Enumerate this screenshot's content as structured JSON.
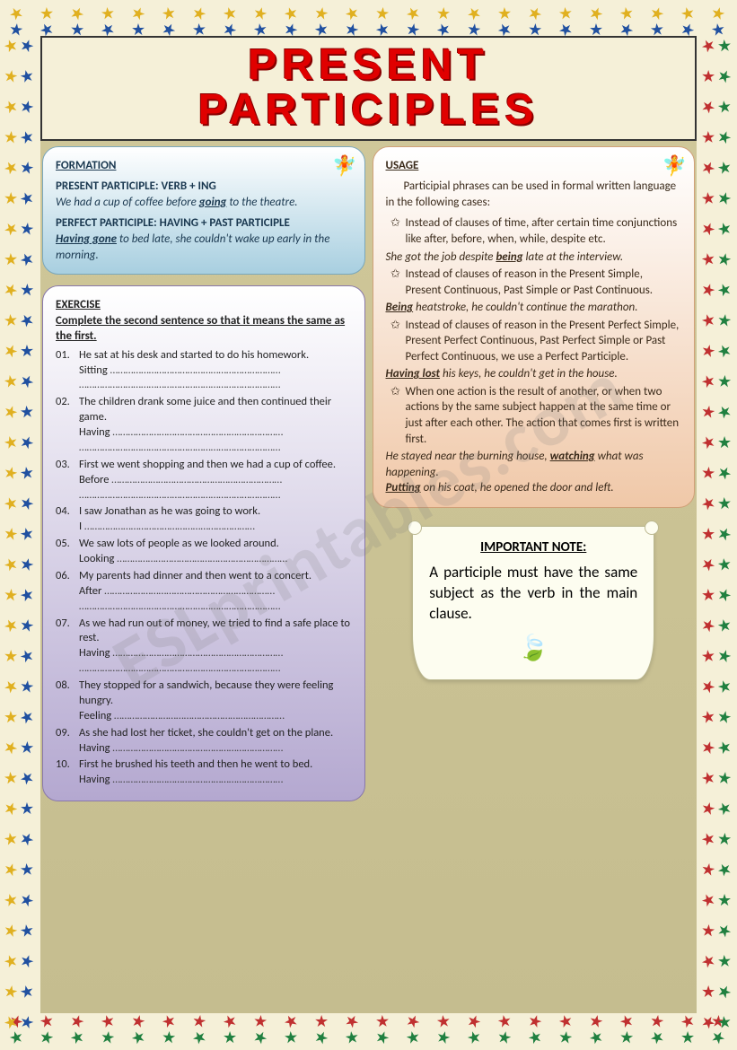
{
  "title_line1": "PRESENT",
  "title_line2": "PARTICIPLES",
  "watermark": "ESLprintables.com",
  "formation": {
    "heading": "FORMATION",
    "pp_label": "PRESENT PARTICIPLE: VERB + ING",
    "pp_ex_pre": "We had a cup of coffee before ",
    "pp_ex_kw": "going",
    "pp_ex_post": " to the theatre.",
    "pf_label": "PERFECT PARTICIPLE: HAVING + PAST PARTICIPLE",
    "pf_ex_kw": "Having gone",
    "pf_ex_post": " to bed late, she couldn't wake up early in the morning."
  },
  "exercise": {
    "heading": "EXERCISE",
    "instruction": "Complete the second sentence so that it means the same as the first.",
    "items": [
      {
        "num": "01.",
        "sent": "He sat at his desk and started to do his homework.",
        "starter": "Sitting ",
        "dots2": true
      },
      {
        "num": "02.",
        "sent": "The children drank some juice and then continued their game.",
        "starter": "Having ",
        "dots2": true
      },
      {
        "num": "03.",
        "sent": "First we went shopping and then we had a cup of coffee.",
        "starter": "Before ",
        "dots2": true
      },
      {
        "num": "04.",
        "sent": "I saw Jonathan as he was going to work.",
        "starter": "I ",
        "dots2": false
      },
      {
        "num": "05.",
        "sent": "We saw lots of people as we looked around.",
        "starter": "Looking ",
        "dots2": false
      },
      {
        "num": "06.",
        "sent": "My parents had dinner and then went to a concert.",
        "starter": "After ",
        "dots2": true
      },
      {
        "num": "07.",
        "sent": "As we had run out of money, we tried to find a safe place to rest.",
        "starter": "Having ",
        "dots2": true
      },
      {
        "num": "08.",
        "sent": "They stopped for a sandwich, because they were feeling hungry.",
        "starter": "Feeling ",
        "dots2": false
      },
      {
        "num": "09.",
        "sent": "As she had lost her ticket, she couldn't get on the plane.",
        "starter": "Having ",
        "dots2": false
      },
      {
        "num": "10.",
        "sent": "First he brushed his teeth and then he went to bed.",
        "starter": "Having ",
        "dots2": false
      }
    ]
  },
  "usage": {
    "heading": "USAGE",
    "intro": "Participial phrases can be used in formal written language in the following cases:",
    "b1": "Instead of clauses of time, after certain time conjunctions like after, before, when, while, despite etc.",
    "ex1_pre": "She got the job despite ",
    "ex1_kw": "being",
    "ex1_post": " late at the interview.",
    "b2": "Instead of clauses of reason in the Present Simple, Present Continuous, Past Simple or Past Continuous.",
    "ex2_kw": "Being",
    "ex2_post": " heatstroke, he couldn't continue the marathon.",
    "b3": "Instead of clauses of reason in the Present Perfect Simple, Present Perfect Continuous, Past Perfect Simple or Past Perfect Continuous, we use a Perfect Participle.",
    "ex3_kw": "Having lost",
    "ex3_post": " his keys, he couldn't get in the house.",
    "b4": "When one action is the result of another, or when two actions by the same subject happen at the same time or just after each other. The action that comes first is written first.",
    "ex4_pre": "He stayed near the burning house, ",
    "ex4_kw": "watching",
    "ex4_post": " what was happening.",
    "ex5_kw": "Putting",
    "ex5_post": " on his coat, he opened the door and left."
  },
  "note": {
    "heading": "IMPORTANT NOTE:",
    "text": "A participle must have the same subject as the verb in the main clause."
  },
  "star_colors": [
    "#e0b020",
    "#2050a0",
    "#208040",
    "#c03030"
  ],
  "bullet_glyph": "✩"
}
